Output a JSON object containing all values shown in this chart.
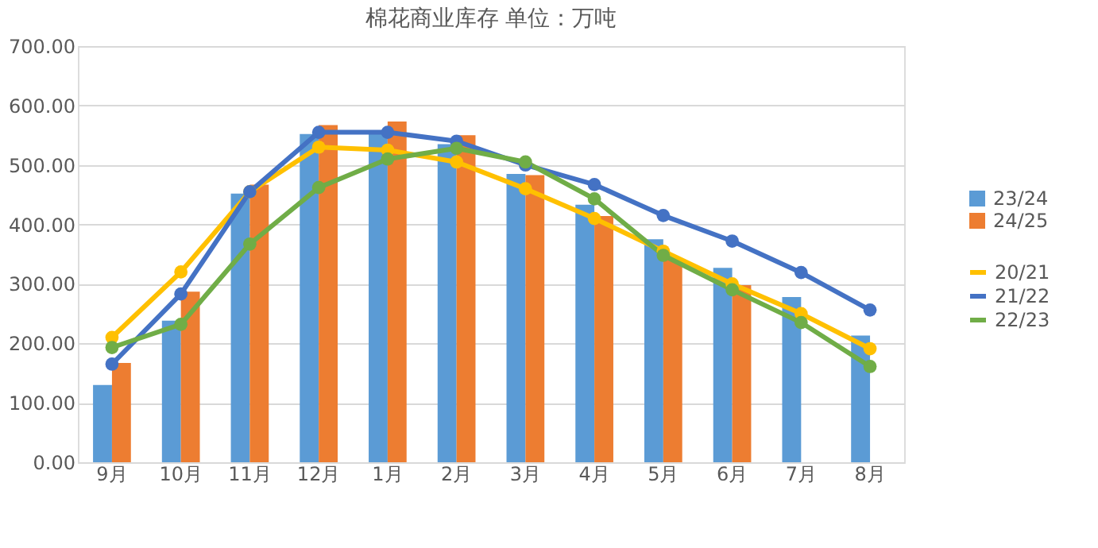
{
  "chart_data": {
    "type": "bar",
    "title": "棉花商业库存 单位：万吨",
    "categories": [
      "9月",
      "10月",
      "11月",
      "12月",
      "1月",
      "2月",
      "3月",
      "4月",
      "5月",
      "6月",
      "7月",
      "8月"
    ],
    "series": [
      {
        "name": "23/24",
        "color": "#5b9bd5",
        "values": [
          130,
          238,
          452,
          552,
          552,
          535,
          485,
          433,
          375,
          327,
          278,
          213
        ]
      },
      {
        "name": "24/25",
        "color": "#ed7d31",
        "values": [
          167,
          287,
          467,
          567,
          573,
          550,
          483,
          414,
          342,
          298,
          null,
          null
        ]
      },
      {
        "name": "20/21",
        "type": "line",
        "color": "#ffc000",
        "values": [
          210,
          320,
          455,
          530,
          525,
          505,
          460,
          410,
          355,
          300,
          250,
          191
        ]
      },
      {
        "name": "21/22",
        "type": "line",
        "color": "#4472c4",
        "values": [
          165,
          283,
          455,
          555,
          555,
          540,
          500,
          467,
          415,
          372,
          319,
          256
        ]
      },
      {
        "name": "22/23",
        "type": "line",
        "color": "#70ad47",
        "values": [
          193,
          232,
          367,
          462,
          510,
          528,
          505,
          443,
          348,
          290,
          235,
          161
        ]
      }
    ],
    "ylim": [
      0,
      700
    ],
    "yticks": [
      {
        "value": 0,
        "label": "0.00"
      },
      {
        "value": 100,
        "label": "100.00"
      },
      {
        "value": 200,
        "label": "200.00"
      },
      {
        "value": 300,
        "label": "300.00"
      },
      {
        "value": 400,
        "label": "400.00"
      },
      {
        "value": 500,
        "label": "500.00"
      },
      {
        "value": 600,
        "label": "600.00"
      },
      {
        "value": 700,
        "label": "700.00"
      }
    ],
    "grid": "y",
    "legend": "right",
    "marker": "circle",
    "line_style": "solid"
  }
}
